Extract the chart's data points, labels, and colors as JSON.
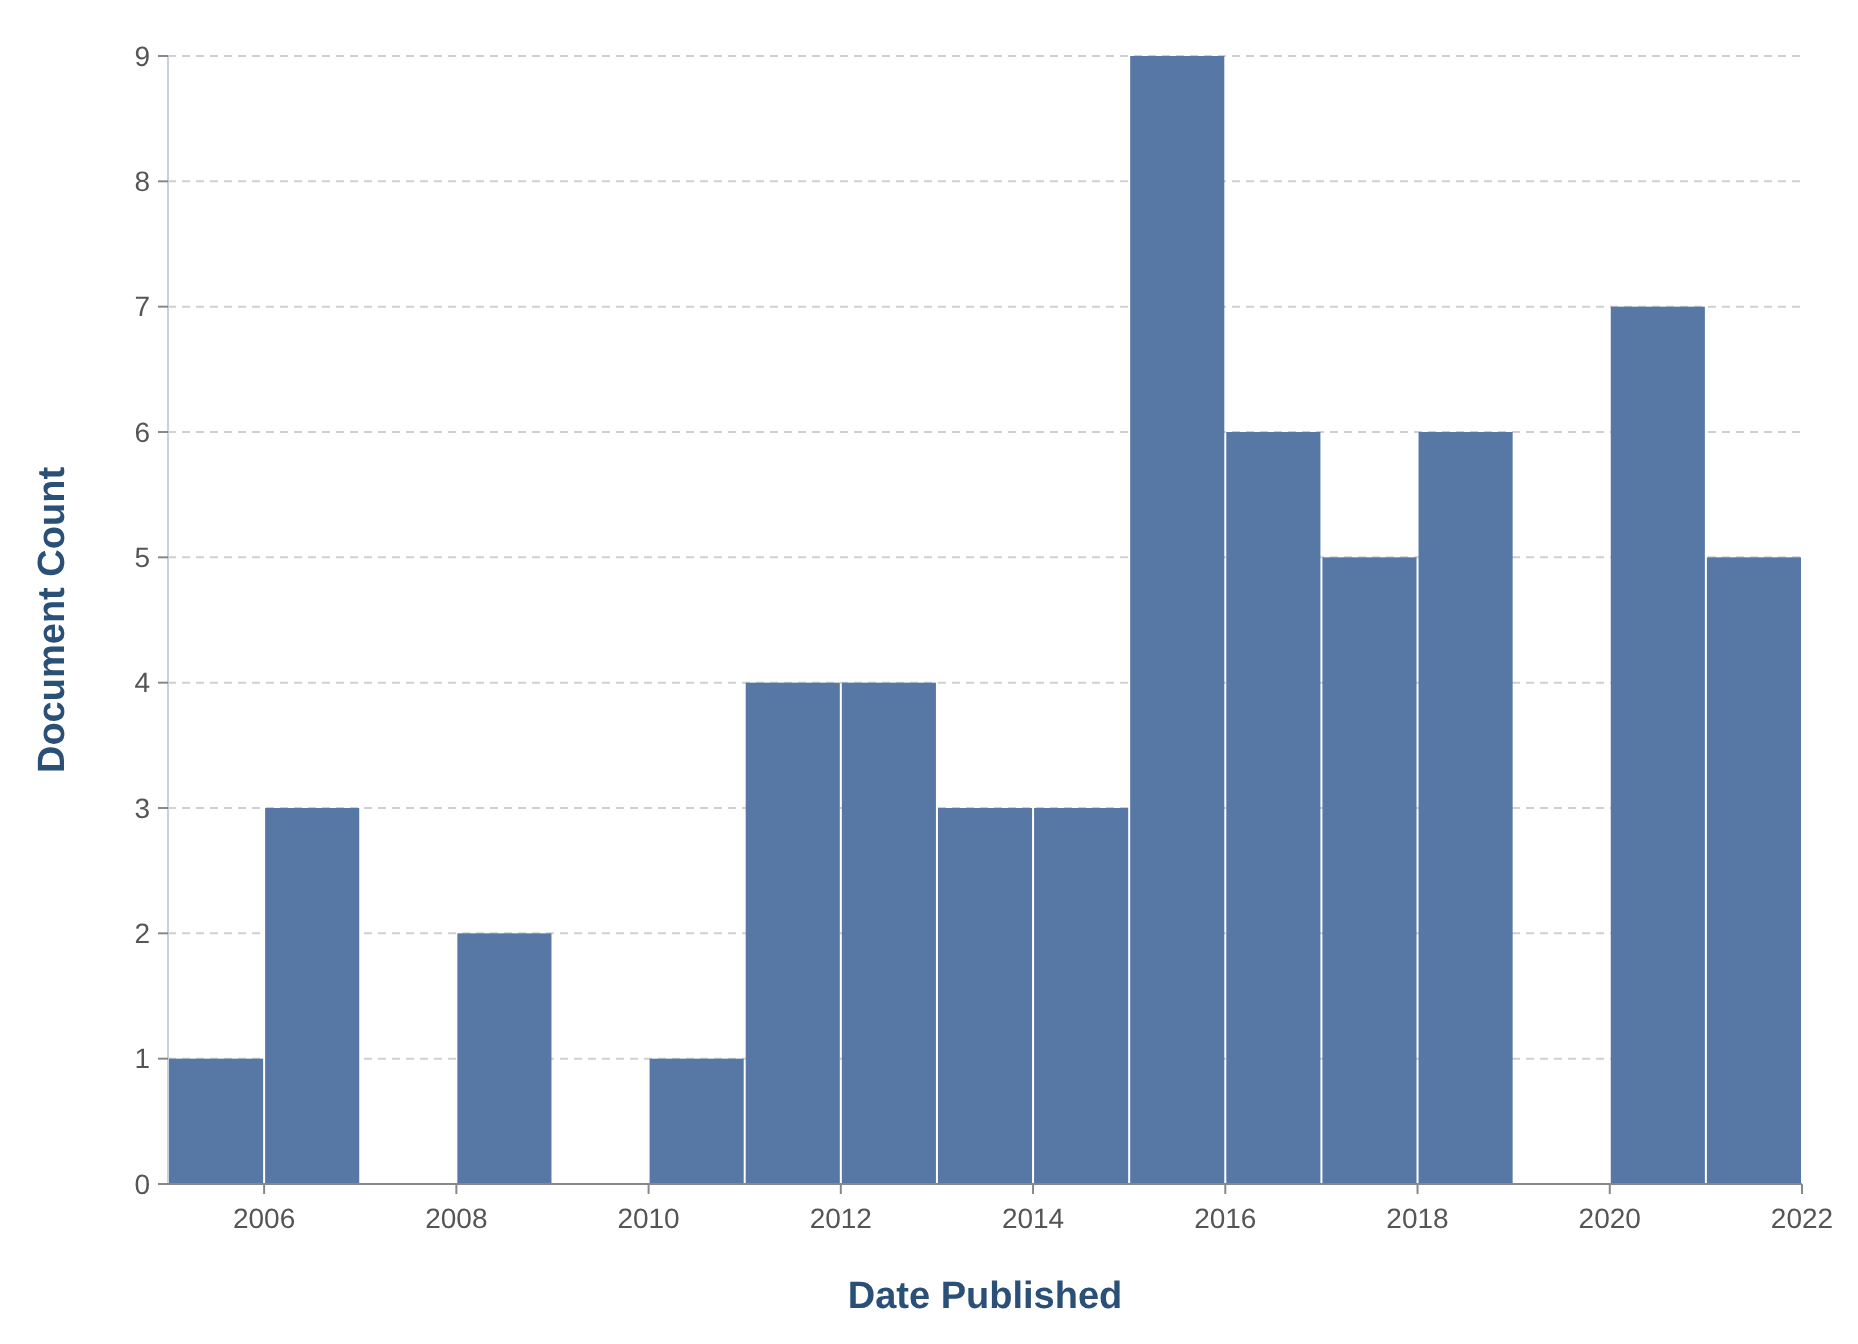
{
  "chart_data": {
    "type": "histogram",
    "xlabel": "Date Published",
    "ylabel": "Document Count",
    "bins": [
      2005,
      2006,
      2007,
      2008,
      2009,
      2010,
      2011,
      2012,
      2013,
      2014,
      2015,
      2016,
      2017,
      2018,
      2019,
      2020,
      2021,
      2022
    ],
    "values": [
      1,
      3,
      0,
      2,
      0,
      1,
      4,
      4,
      3,
      3,
      9,
      6,
      5,
      6,
      0,
      7,
      5
    ],
    "color": "#5778a4",
    "xlim": [
      2005,
      2022
    ],
    "xticks": [
      2006,
      2008,
      2010,
      2012,
      2014,
      2016,
      2018,
      2020,
      2022
    ],
    "ylim": [
      0,
      9
    ],
    "yticks": [
      0,
      1,
      2,
      3,
      4,
      5,
      6,
      7,
      8,
      9
    ],
    "grid": "y"
  }
}
